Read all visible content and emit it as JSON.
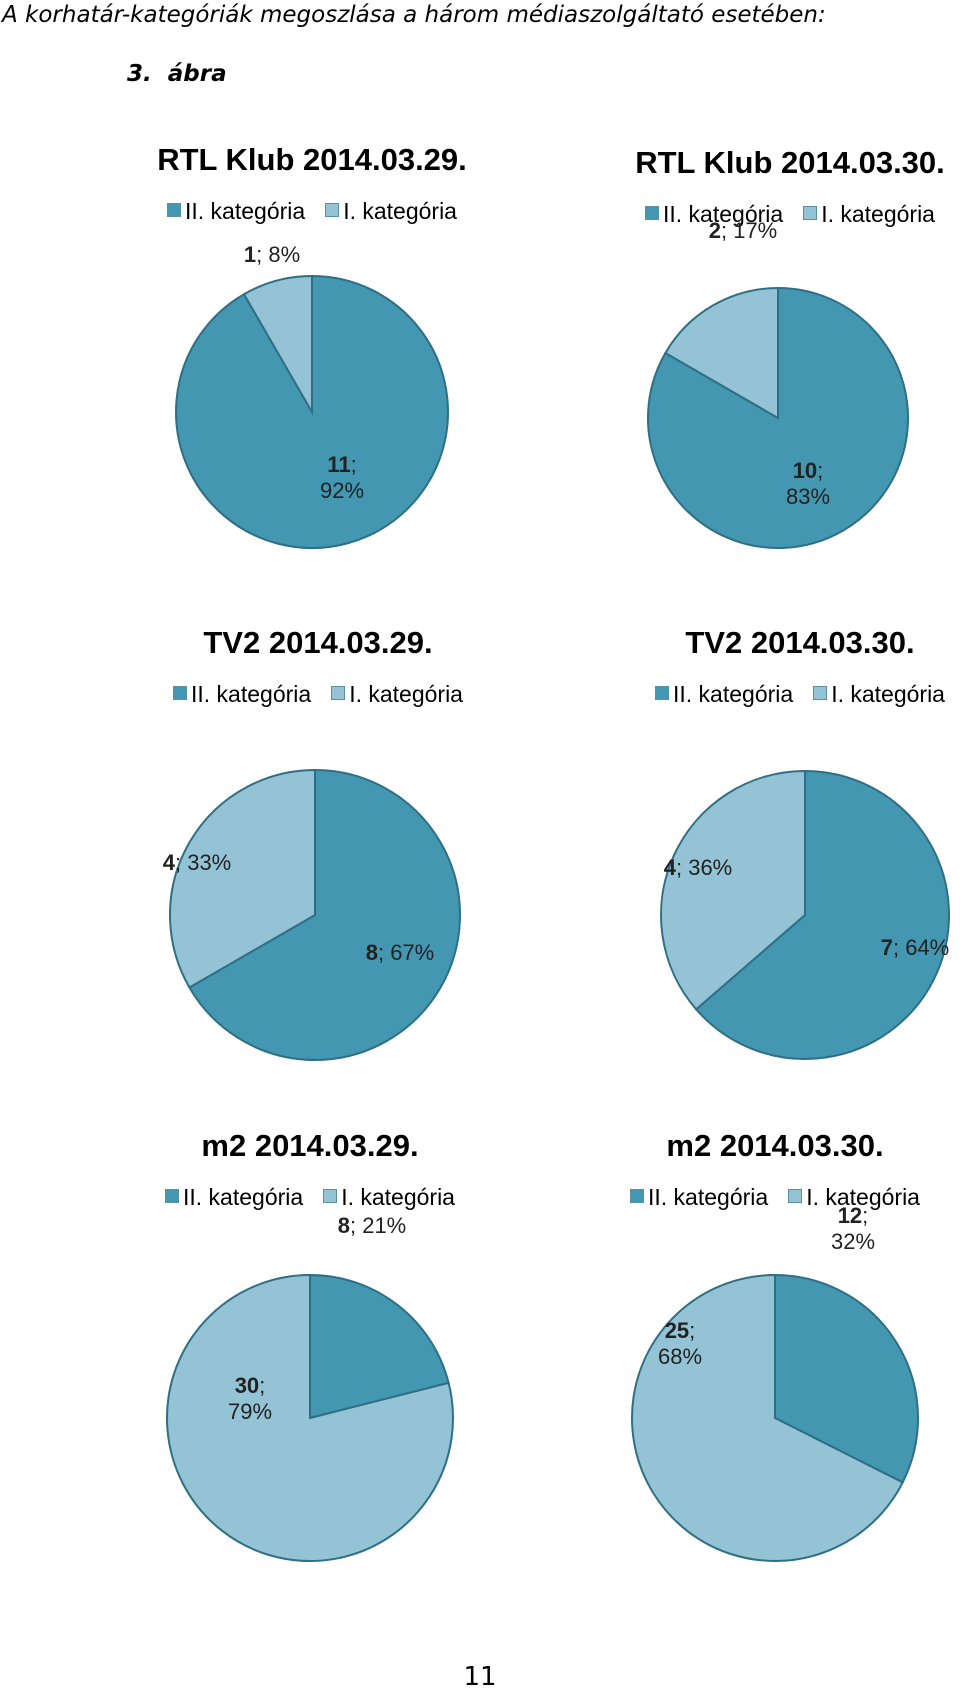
{
  "caption": "A korhatár-kategóriák megoszlása a három médiaszolgáltató esetében:",
  "figure_label": {
    "num": "3.",
    "word": "ábra"
  },
  "colors": {
    "cat2": "#4397b0",
    "cat1": "#94c3d5",
    "edge": "#2f6f86"
  },
  "legend": [
    "II. kategória",
    "I. kategória"
  ],
  "page_number": "11",
  "chart_data": [
    {
      "type": "pie",
      "title": "RTL Klub 2014.03.29.",
      "slices": [
        {
          "name": "II. kategória",
          "value": 11,
          "label_num": "11",
          "label_pct": "92%"
        },
        {
          "name": "I. kategória",
          "value": 1,
          "label_num": "1",
          "label_pct": "8%"
        }
      ]
    },
    {
      "type": "pie",
      "title": "RTL Klub 2014.03.30.",
      "slices": [
        {
          "name": "II. kategória",
          "value": 10,
          "label_num": "10",
          "label_pct": "83%"
        },
        {
          "name": "I. kategória",
          "value": 2,
          "label_num": "2",
          "label_pct": "17%"
        }
      ]
    },
    {
      "type": "pie",
      "title": "TV2 2014.03.29.",
      "slices": [
        {
          "name": "II. kategória",
          "value": 8,
          "label_num": "8",
          "label_pct": "67%"
        },
        {
          "name": "I. kategória",
          "value": 4,
          "label_num": "4",
          "label_pct": "33%"
        }
      ]
    },
    {
      "type": "pie",
      "title": "TV2 2014.03.30.",
      "slices": [
        {
          "name": "II. kategória",
          "value": 7,
          "label_num": "7",
          "label_pct": "64%"
        },
        {
          "name": "I. kategória",
          "value": 4,
          "label_num": "4",
          "label_pct": "36%"
        }
      ]
    },
    {
      "type": "pie",
      "title": "m2 2014.03.29.",
      "slices": [
        {
          "name": "II. kategória",
          "value": 8,
          "label_num": "8",
          "label_pct": "21%"
        },
        {
          "name": "I. kategória",
          "value": 30,
          "label_num": "30",
          "label_pct": "79%"
        }
      ]
    },
    {
      "type": "pie",
      "title": "m2 2014.03.30.",
      "slices": [
        {
          "name": "II. kategória",
          "value": 12,
          "label_num": "12",
          "label_pct": "32%"
        },
        {
          "name": "I. kategória",
          "value": 25,
          "label_num": "25",
          "label_pct": "68%"
        }
      ]
    }
  ]
}
